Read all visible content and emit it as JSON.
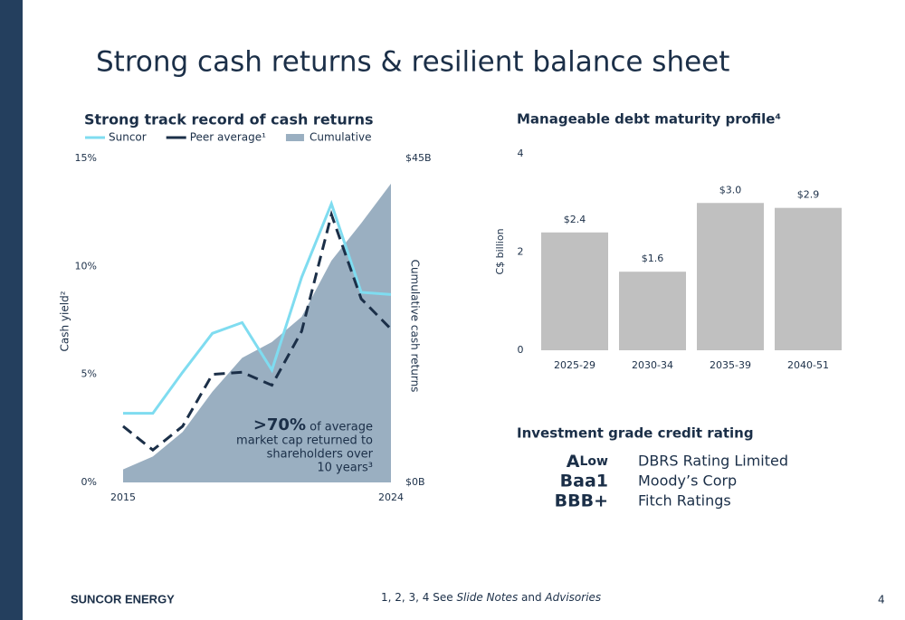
{
  "title": "Strong cash returns & resilient balance sheet",
  "chart_data": [
    {
      "type": "line",
      "title": "Strong track record of cash returns",
      "x": [
        2015,
        2016,
        2017,
        2018,
        2019,
        2020,
        2021,
        2022,
        2023,
        2024
      ],
      "xlim": [
        2015,
        2024
      ],
      "xticks": [
        2015,
        2024
      ],
      "ylim": [
        0,
        15
      ],
      "yticks": [
        {
          "value": 0,
          "label": "0%"
        },
        {
          "value": 5,
          "label": "5%"
        },
        {
          "value": 10,
          "label": "10%"
        },
        {
          "value": 15,
          "label": "15%"
        }
      ],
      "y2lim": [
        0,
        45
      ],
      "y2ticks": [
        {
          "value": 0,
          "label": "$0B"
        },
        {
          "value": 45,
          "label": "$45B"
        }
      ],
      "ylabel": "Cash yield²",
      "y2label": "Cumulative cash returns",
      "series": [
        {
          "name": "Suncor",
          "color": "#7fdcf0",
          "values": [
            3.2,
            3.2,
            5.1,
            6.9,
            7.4,
            5.2,
            9.5,
            12.9,
            8.8,
            8.7
          ]
        },
        {
          "name": "Peer average¹",
          "color": "#1b2f48",
          "dashed": true,
          "values": [
            2.6,
            1.5,
            2.6,
            5.0,
            5.1,
            4.5,
            7.0,
            12.4,
            8.5,
            7.1
          ]
        },
        {
          "name": "Cumulative",
          "color": "#9aafc1",
          "area": true,
          "axis": "y2",
          "values": [
            1.8,
            3.6,
            7.0,
            12.6,
            17.3,
            19.5,
            23.0,
            30.8,
            36.0,
            41.5
          ]
        }
      ],
      "annotation": {
        "highlight": ">70%",
        "lines": [
          "of average",
          "market cap returned to",
          "shareholders over",
          "10 years³"
        ]
      }
    },
    {
      "type": "bar",
      "title": "Manageable debt maturity profile⁴",
      "categories": [
        "2025-29",
        "2030-34",
        "2035-39",
        "2040-51"
      ],
      "values": [
        2.4,
        1.6,
        3.0,
        2.9
      ],
      "value_labels": [
        "$2.4",
        "$1.6",
        "$3.0",
        "$2.9"
      ],
      "color": "#c0c0c0",
      "ylim": [
        0,
        4
      ],
      "yticks": [
        0,
        2,
        4
      ],
      "ylabel": "C$ billion"
    }
  ],
  "ratings": {
    "title": "Investment grade credit rating",
    "rows": [
      {
        "rating": "A",
        "qualifier": "Low",
        "agency": "DBRS Rating Limited"
      },
      {
        "rating": "Baa1",
        "agency": "Moody’s Corp"
      },
      {
        "rating": "BBB+",
        "agency": "Fitch Ratings"
      }
    ]
  },
  "footer": {
    "company": "SUNCOR ENERGY",
    "notes": [
      "1, 2, 3, 4 See ",
      "Slide Notes",
      " and ",
      "Advisories"
    ],
    "page": "4"
  }
}
